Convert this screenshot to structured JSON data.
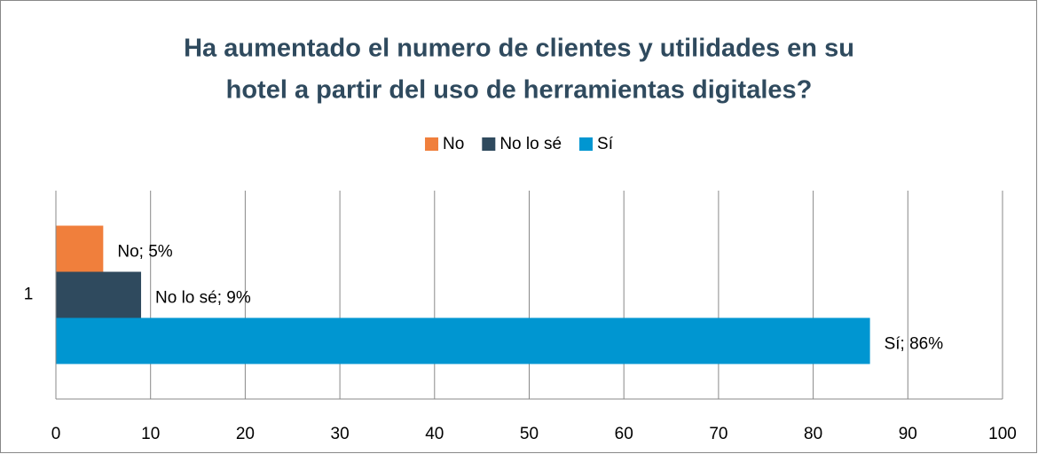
{
  "chart_data": {
    "type": "hbar",
    "title": [
      "Ha aumentado el numero de clientes y utilidades en su",
      "hotel a partir del uso de herramientas digitales?"
    ],
    "categories": [
      "1"
    ],
    "series": [
      {
        "name": "No",
        "color": "#f07f3c",
        "values": [
          5
        ],
        "value_labels": [
          "No; 5%"
        ]
      },
      {
        "name": "No lo sé",
        "color": "#2f4a5e",
        "values": [
          9
        ],
        "value_labels": [
          "No lo sé; 9%"
        ]
      },
      {
        "name": "Sí",
        "color": "#0096d1",
        "values": [
          86
        ],
        "value_labels": [
          "Sí; 86%"
        ]
      }
    ],
    "xlim": [
      0,
      100
    ],
    "xticks": [
      0,
      10,
      20,
      30,
      40,
      50,
      60,
      70,
      80,
      90,
      100
    ],
    "grid": true,
    "legend": "top"
  }
}
